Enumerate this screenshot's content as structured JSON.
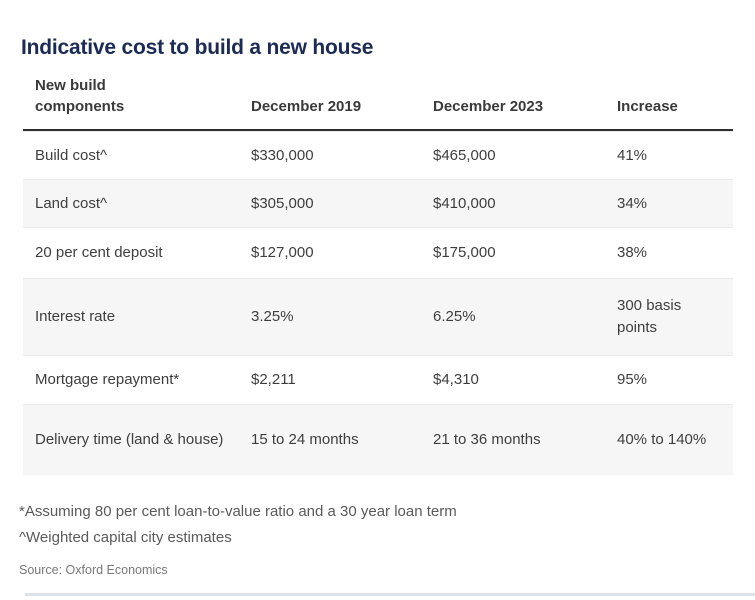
{
  "page": {
    "title": "Indicative cost to build a new house",
    "footnote_1": "*Assuming 80 per cent loan-to-value ratio and a 30 year loan term",
    "footnote_2": "^Weighted capital city estimates",
    "source": "Source: Oxford Economics"
  },
  "colors": {
    "title_navy": "#1b2b55",
    "header_text": "#3a3a3a",
    "body_text": "#3e3e3e",
    "alt_row_bg": "#f6f6f6",
    "header_rule": "#2f2f2f",
    "row_divider": "#ebebeb",
    "footnote_text": "#5a5a5a",
    "source_text": "#787878",
    "bottom_bar": "#dde1e9"
  },
  "chart_data": {
    "type": "table",
    "title": "Indicative cost to build a new house",
    "columns": [
      "New build components",
      "December 2019",
      "December 2023",
      "Increase"
    ],
    "rows": [
      [
        "Build cost^",
        "$330,000",
        "$465,000",
        "41%"
      ],
      [
        "Land cost^",
        "$305,000",
        "$410,000",
        "34%"
      ],
      [
        "20 per cent deposit",
        "$127,000",
        "$175,000",
        "38%"
      ],
      [
        "Interest rate",
        "3.25%",
        "6.25%",
        "300 basis points"
      ],
      [
        "Mortgage repayment*",
        "$2,211",
        "$4,310",
        "95%"
      ],
      [
        "Delivery time (land & house)",
        "15 to 24 months",
        "21 to 36 months",
        "40% to 140%"
      ]
    ],
    "footnotes": [
      "*Assuming 80 per cent loan-to-value ratio and a 30 year loan term",
      "^Weighted capital city estimates"
    ],
    "source": "Source: Oxford Economics"
  }
}
